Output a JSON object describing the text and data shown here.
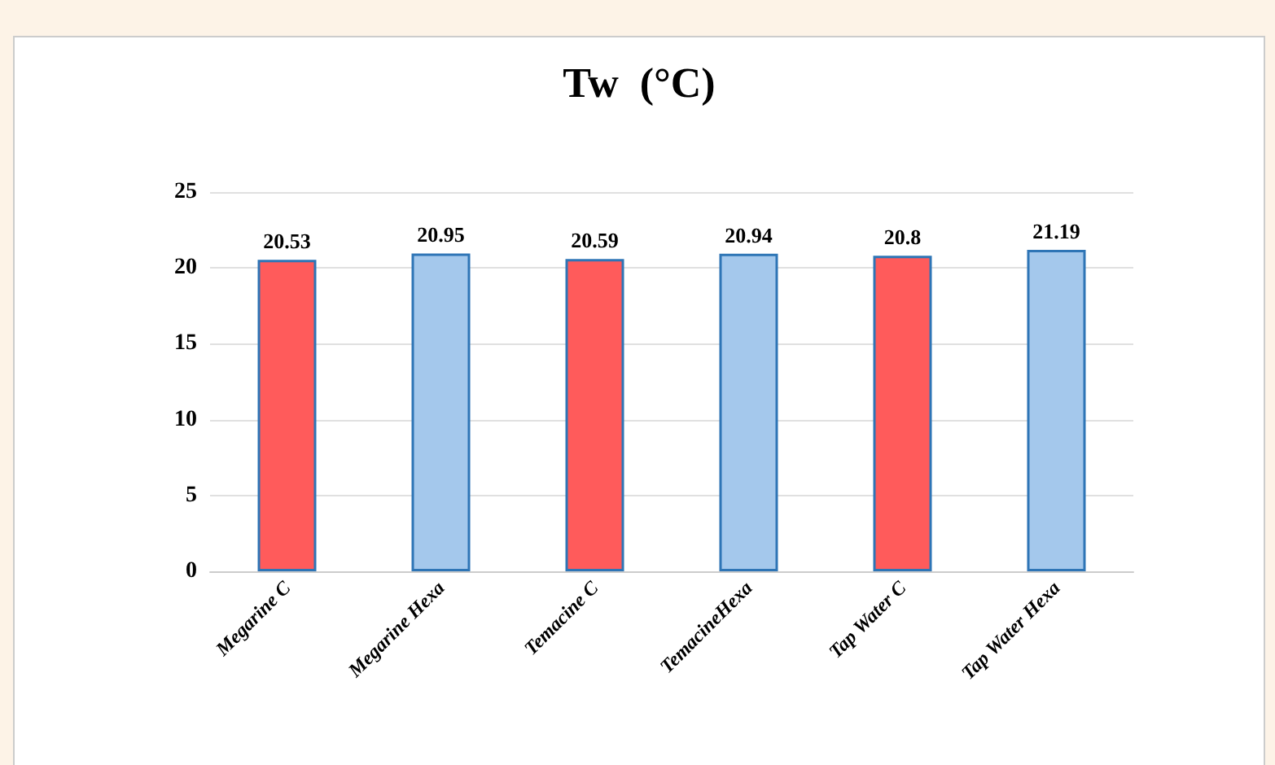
{
  "chart_data": {
    "type": "bar",
    "title": "Tw  (°C)",
    "categories": [
      "Megarine C",
      "Megarine Hexa",
      "Temacine C",
      "TemacineHexa",
      "Tap Water C",
      "Tap Water Hexa"
    ],
    "values": [
      20.53,
      20.95,
      20.59,
      20.94,
      20.8,
      21.19
    ],
    "colors": [
      "#ff5b5b",
      "#a4c8ec",
      "#ff5b5b",
      "#a4c8ec",
      "#ff5b5b",
      "#a4c8ec"
    ],
    "ylim": [
      0,
      25
    ],
    "yticks": [
      0,
      5,
      10,
      15,
      20,
      25
    ],
    "grid": "y",
    "data_labels": true
  }
}
